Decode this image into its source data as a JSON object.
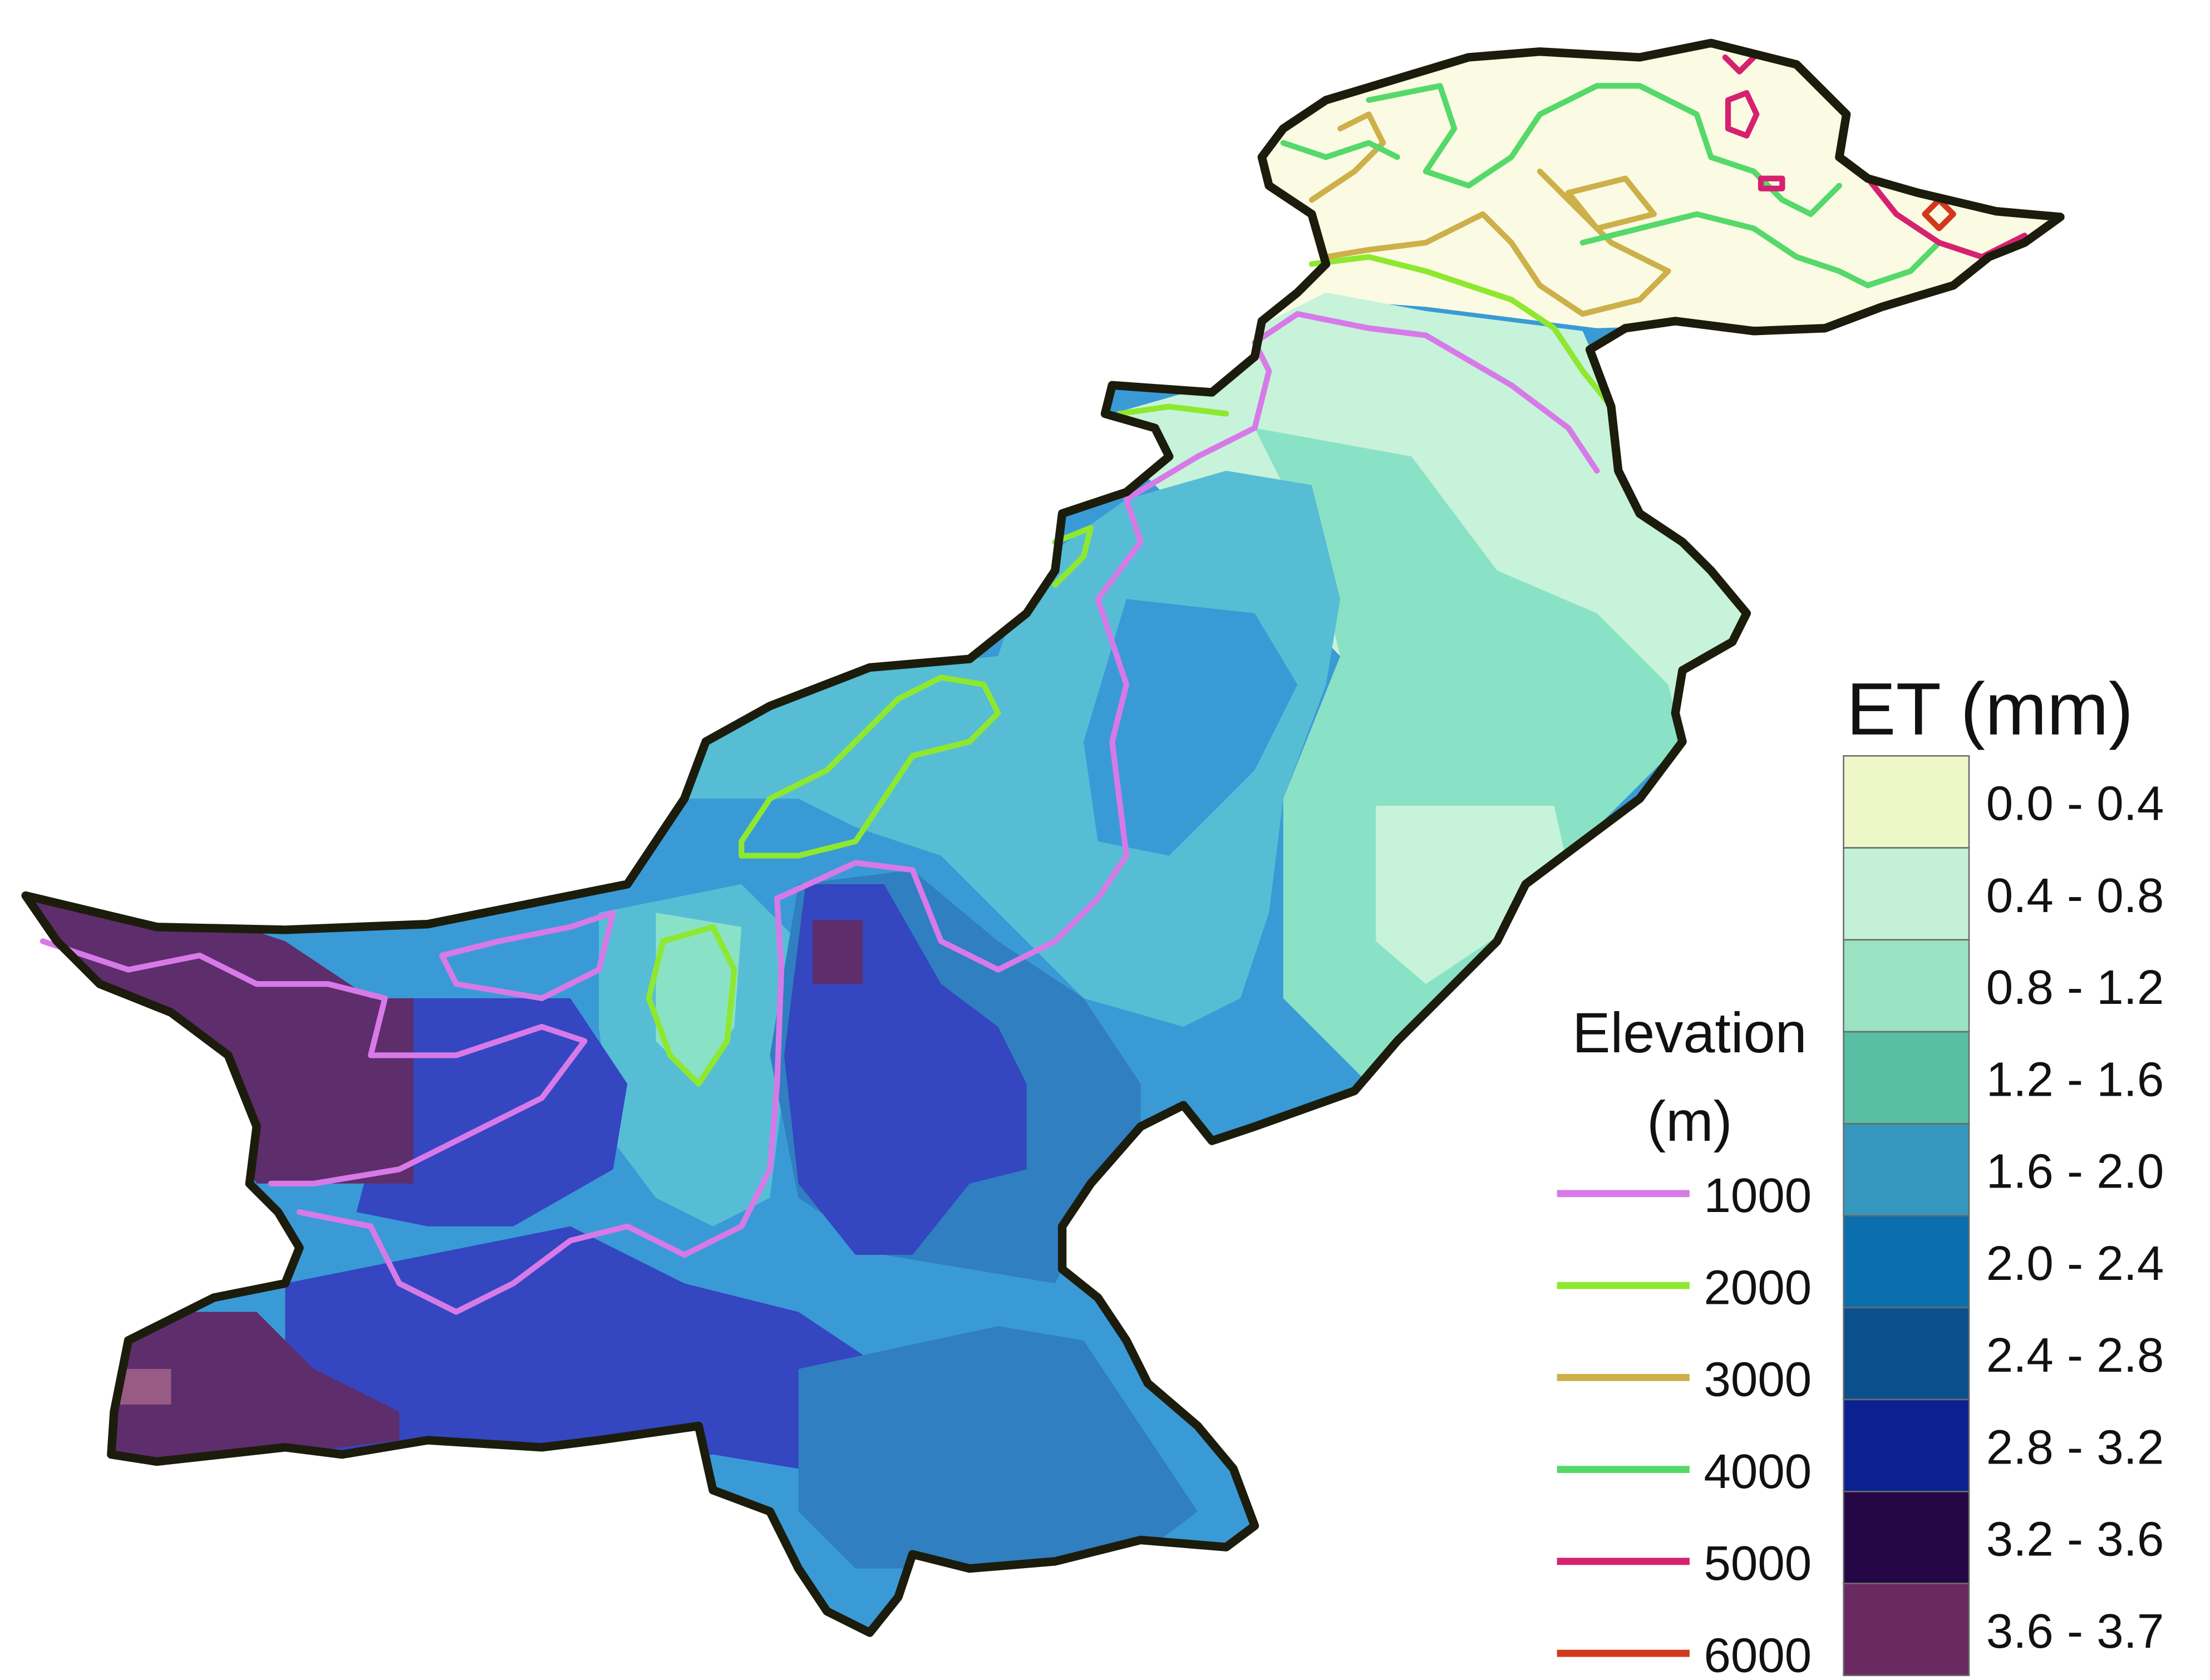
{
  "et_legend": {
    "title": "ET (mm)",
    "classes": [
      {
        "label": "0.0 - 0.4",
        "color": "#eef7c8"
      },
      {
        "label": "0.4 - 0.8",
        "color": "#c4f0d8"
      },
      {
        "label": "0.8 - 1.2",
        "color": "#99e3c2"
      },
      {
        "label": "1.2 - 1.6",
        "color": "#57bea3"
      },
      {
        "label": "1.6 - 2.0",
        "color": "#3597bd"
      },
      {
        "label": "2.0 - 2.4",
        "color": "#0b6fae"
      },
      {
        "label": "2.4 - 2.8",
        "color": "#0b4f8d"
      },
      {
        "label": "2.8 - 3.2",
        "color": "#0b2191"
      },
      {
        "label": "3.2 - 3.6",
        "color": "#250746"
      },
      {
        "label": "3.6 - 3.7",
        "color": "#6a2a61"
      }
    ]
  },
  "elevation_legend": {
    "title_line1": "Elevation",
    "title_line2": "(m)",
    "contours": [
      {
        "label": "1000",
        "color": "#d77ae8"
      },
      {
        "label": "2000",
        "color": "#8ee82f"
      },
      {
        "label": "3000",
        "color": "#cdb04a"
      },
      {
        "label": "4000",
        "color": "#54d96a"
      },
      {
        "label": "5000",
        "color": "#d6216f"
      },
      {
        "label": "6000",
        "color": "#d2391c"
      }
    ]
  },
  "map": {
    "border_color": "#1c1c0c",
    "zone_colors": {
      "north_cap": "#fbfbe3",
      "north_light": "#c6f3da",
      "mint": "#8ae2c6",
      "teal": "#56bdd5",
      "mid_blue": "#3a9ad6",
      "steel_blue": "#2f7fc1",
      "royal_blue": "#3446c0",
      "plum": "#5e2d6b",
      "mauve": "#985b83"
    }
  }
}
